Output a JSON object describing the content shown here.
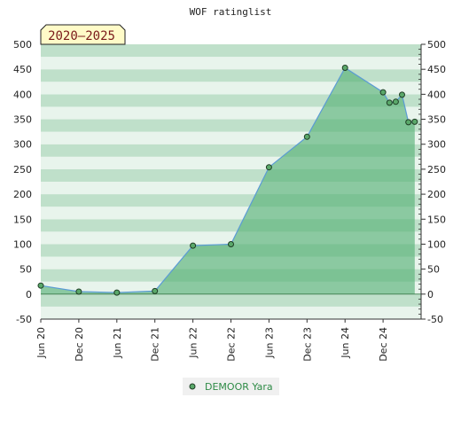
{
  "chart_data": {
    "type": "area",
    "title": "WOF ratinglist",
    "badge": "2020–2025",
    "xlabel": "",
    "ylabel": "",
    "ylim": [
      -50,
      500
    ],
    "yticks": [
      -50,
      0,
      50,
      100,
      150,
      200,
      250,
      300,
      350,
      400,
      450,
      500
    ],
    "yticks_right": [
      -50,
      0,
      50,
      100,
      150,
      200,
      250,
      300,
      350,
      400,
      450,
      500
    ],
    "xlim": [
      "2020-06",
      "2025-06"
    ],
    "xticks": [
      {
        "date": "2020-06",
        "label": "Jun 20"
      },
      {
        "date": "2020-12",
        "label": "Dec 20"
      },
      {
        "date": "2021-06",
        "label": "Jun 21"
      },
      {
        "date": "2021-12",
        "label": "Dec 21"
      },
      {
        "date": "2022-06",
        "label": "Jun 22"
      },
      {
        "date": "2022-12",
        "label": "Dec 22"
      },
      {
        "date": "2023-06",
        "label": "Jun 23"
      },
      {
        "date": "2023-12",
        "label": "Dec 23"
      },
      {
        "date": "2024-06",
        "label": "Jun 24"
      },
      {
        "date": "2024-12",
        "label": "Dec 24"
      }
    ],
    "series": [
      {
        "name": "DEMOOR Yara",
        "points": [
          {
            "x": "2020-06",
            "y": 17
          },
          {
            "x": "2020-12",
            "y": 5
          },
          {
            "x": "2021-06",
            "y": 3
          },
          {
            "x": "2021-12",
            "y": 6
          },
          {
            "x": "2022-06",
            "y": 97
          },
          {
            "x": "2022-12",
            "y": 100
          },
          {
            "x": "2023-06",
            "y": 254
          },
          {
            "x": "2023-12",
            "y": 315
          },
          {
            "x": "2024-06",
            "y": 453
          },
          {
            "x": "2024-12",
            "y": 404
          },
          {
            "x": "2025-01",
            "y": 383
          },
          {
            "x": "2025-02",
            "y": 385
          },
          {
            "x": "2025-03",
            "y": 399
          },
          {
            "x": "2025-04",
            "y": 344
          },
          {
            "x": "2025-05",
            "y": 345
          }
        ]
      }
    ],
    "grid": "horizontal-bands",
    "legend": "bottom-center",
    "colors": {
      "area_fill": "#7cc294",
      "line": "#5b9bd5",
      "marker": "#5aa86a",
      "marker_edge": "#1e3d24",
      "band_light": "#e8f4ec",
      "band_dark": "#bfe0ca",
      "badge_bg": "#fffbc8",
      "legend_bg": "#f0f0f0",
      "legend_text": "#2e8b46"
    }
  }
}
